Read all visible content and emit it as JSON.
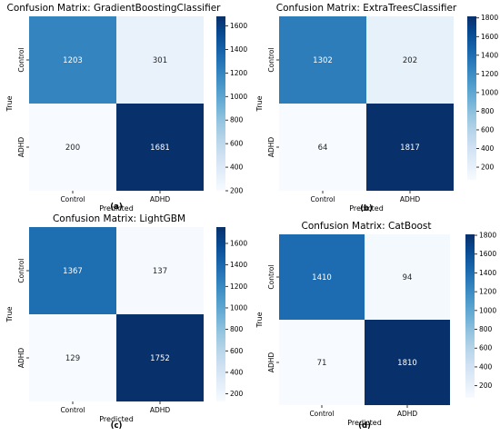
{
  "chart_data": [
    {
      "type": "heatmap",
      "title": "Confusion Matrix: GradientBoostingClassifier",
      "xlabel": "Predicted",
      "ylabel": "True",
      "x_categories": [
        "Control",
        "ADHD"
      ],
      "y_categories": [
        "Control",
        "ADHD"
      ],
      "values": [
        [
          1203,
          301
        ],
        [
          200,
          1681
        ]
      ],
      "colorbar": {
        "range": [
          200,
          1681
        ],
        "ticks": [
          200,
          400,
          600,
          800,
          1000,
          1200,
          1400,
          1600
        ]
      },
      "colormap": "Blues",
      "caption": "(a)"
    },
    {
      "type": "heatmap",
      "title": "Confusion Matrix: ExtraTreesClassifier",
      "xlabel": "Predicted",
      "ylabel": "True",
      "x_categories": [
        "Control",
        "ADHD"
      ],
      "y_categories": [
        "Control",
        "ADHD"
      ],
      "values": [
        [
          1302,
          202
        ],
        [
          64,
          1817
        ]
      ],
      "colorbar": {
        "range": [
          64,
          1817
        ],
        "ticks": [
          200,
          400,
          600,
          800,
          1000,
          1200,
          1400,
          1600,
          1800
        ]
      },
      "colormap": "Blues",
      "caption": "(b)"
    },
    {
      "type": "heatmap",
      "title": "Confusion Matrix: LightGBM",
      "xlabel": "Predicted",
      "ylabel": "True",
      "x_categories": [
        "Control",
        "ADHD"
      ],
      "y_categories": [
        "Control",
        "ADHD"
      ],
      "values": [
        [
          1367,
          137
        ],
        [
          129,
          1752
        ]
      ],
      "colorbar": {
        "range": [
          129,
          1752
        ],
        "ticks": [
          200,
          400,
          600,
          800,
          1000,
          1200,
          1400,
          1600
        ]
      },
      "colormap": "Blues",
      "caption": "(c)"
    },
    {
      "type": "heatmap",
      "title": "Confusion Matrix: CatBoost",
      "xlabel": "Predicted",
      "ylabel": "True",
      "x_categories": [
        "Control",
        "ADHD"
      ],
      "y_categories": [
        "Control",
        "ADHD"
      ],
      "values": [
        [
          1410,
          94
        ],
        [
          71,
          1810
        ]
      ],
      "colorbar": {
        "range": [
          71,
          1810
        ],
        "ticks": [
          200,
          400,
          600,
          800,
          1000,
          1200,
          1400,
          1600,
          1800
        ]
      },
      "colormap": "Blues",
      "caption": "(d)"
    }
  ]
}
